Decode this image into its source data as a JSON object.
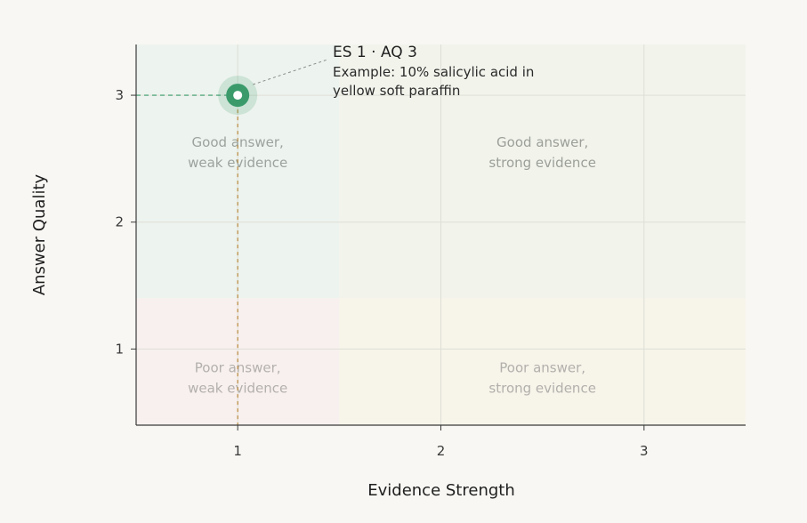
{
  "chart_data": {
    "type": "scatter",
    "xlabel": "Evidence Strength",
    "ylabel": "Answer Quality",
    "xlim": [
      0.5,
      3.5
    ],
    "ylim": [
      0.4,
      3.4
    ],
    "x_ticks": [
      1,
      2,
      3
    ],
    "y_ticks": [
      1,
      2,
      3
    ],
    "grid": true,
    "quadrants": [
      {
        "id": "good-weak",
        "lines": [
          "Good answer,",
          "weak evidence"
        ],
        "x_range": [
          0.5,
          1.5
        ],
        "y_range": [
          1.4,
          3.4
        ],
        "fill": "#edf3ee",
        "text_color": "#9ca39e"
      },
      {
        "id": "good-strong",
        "lines": [
          "Good answer,",
          "strong evidence"
        ],
        "x_range": [
          1.5,
          3.5
        ],
        "y_range": [
          1.4,
          3.4
        ],
        "fill": "#f2f4ec",
        "text_color": "#9b9f98"
      },
      {
        "id": "poor-weak",
        "lines": [
          "Poor answer,",
          "weak evidence"
        ],
        "x_range": [
          0.5,
          1.5
        ],
        "y_range": [
          0.4,
          1.4
        ],
        "fill": "#f8f0ee",
        "text_color": "#b3b0ad"
      },
      {
        "id": "poor-strong",
        "lines": [
          "Poor answer,",
          "strong evidence"
        ],
        "x_range": [
          1.5,
          3.5
        ],
        "y_range": [
          0.4,
          1.4
        ],
        "fill": "#f7f4ea",
        "text_color": "#b1b0ab"
      }
    ],
    "point": {
      "x": 1,
      "y": 3,
      "color": "#3a9a6a",
      "callout_title": "ES 1 · AQ 3",
      "callout_lines": [
        "Example: 10% salicylic acid in",
        "yellow soft paraffin"
      ]
    },
    "guide_colors": {
      "horizontal": "#3a9a6a",
      "vertical": "#b98a3e"
    }
  }
}
